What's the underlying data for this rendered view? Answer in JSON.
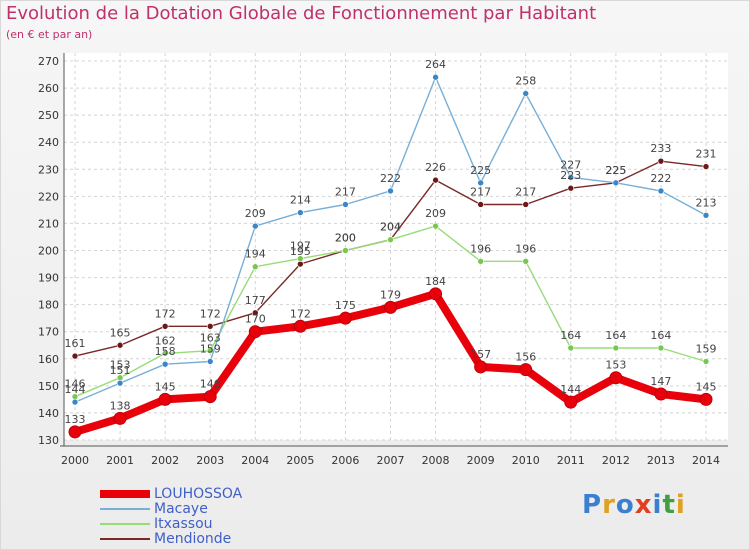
{
  "title": "Evolution de la Dotation Globale de Fonctionnement par Habitant",
  "subtitle": "(en € et par an)",
  "logo": {
    "text": "Proxiti",
    "colors": [
      "#3a7fd0",
      "#e0a020",
      "#3a7fd0",
      "#e04020",
      "#3a7fd0",
      "#40a040",
      "#e0a020"
    ]
  },
  "chart_data": {
    "type": "line",
    "x": [
      2000,
      2001,
      2002,
      2003,
      2004,
      2005,
      2006,
      2007,
      2008,
      2009,
      2010,
      2011,
      2012,
      2013,
      2014
    ],
    "ylim": [
      130,
      270
    ],
    "yticks": [
      130,
      140,
      150,
      160,
      170,
      180,
      190,
      200,
      210,
      220,
      230,
      240,
      250,
      260,
      270
    ],
    "grid": true,
    "legend_position": "bottom-left",
    "series": [
      {
        "name": "LOUHOSSOA",
        "color": "#e8000b",
        "width": 8,
        "dot": "#e8000b",
        "values": [
          133,
          138,
          145,
          146,
          170,
          172,
          175,
          179,
          184,
          157,
          156,
          144,
          153,
          147,
          145
        ]
      },
      {
        "name": "Macaye",
        "color": "#78afd8",
        "width": 1.4,
        "dot": "#3a86c8",
        "values": [
          144,
          151,
          158,
          159,
          209,
          214,
          217,
          222,
          264,
          225,
          258,
          227,
          225,
          222,
          213
        ]
      },
      {
        "name": "Itxassou",
        "color": "#98dc78",
        "width": 1.4,
        "dot": "#78c850",
        "values": [
          146,
          153,
          162,
          163,
          194,
          197,
          200,
          204,
          209,
          196,
          196,
          164,
          164,
          164,
          159
        ]
      },
      {
        "name": "Mendionde",
        "color": "#7a2828",
        "width": 1.4,
        "dot": "#6a1818",
        "values": [
          161,
          165,
          172,
          172,
          177,
          195,
          200,
          204,
          226,
          217,
          217,
          223,
          225,
          233,
          231
        ]
      }
    ],
    "point_labels": [
      [
        "133",
        "138",
        "145",
        "146",
        "170",
        "172",
        "175",
        "179",
        "184",
        "157",
        "156",
        "144",
        "153",
        "147",
        "145"
      ],
      [
        "144",
        "151",
        "158",
        "159",
        "209",
        "214",
        "217",
        "222",
        "264",
        "225",
        "258",
        "227",
        "225",
        "222",
        "213"
      ],
      [
        "146",
        "153",
        "162",
        "163",
        "194",
        "197",
        "200",
        "204",
        "209",
        "196",
        "196",
        "164",
        "164",
        "164",
        "159"
      ],
      [
        "161",
        "165",
        "172",
        "172",
        "177",
        "195",
        "200",
        "204",
        "226",
        "217",
        "217",
        "223",
        "225",
        "233",
        "231"
      ]
    ]
  }
}
